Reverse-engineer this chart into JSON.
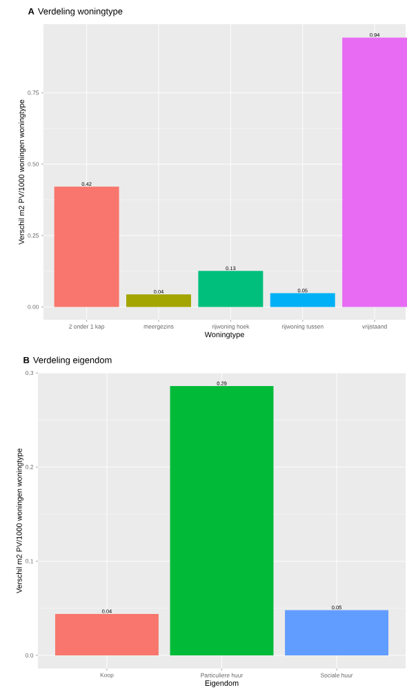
{
  "chart_data": [
    {
      "type": "bar",
      "title": "Verdeling woningtype",
      "annotations": [
        "A"
      ],
      "xlabel": "Woningtype",
      "ylabel": "Verschil m2 PV/1000 woningen woningtype",
      "categories": [
        "2 onder 1 kap",
        "meergezins",
        "rijwoning hoek",
        "rijwoning tussen",
        "vrijstaand"
      ],
      "values": [
        0.421,
        0.044,
        0.126,
        0.048,
        0.943
      ],
      "colors": [
        "#f8766d",
        "#a3a500",
        "#00bf7d",
        "#00b0f6",
        "#e76bf3"
      ],
      "value_labels": [
        "0.42",
        "0.04",
        "0.13",
        "0.05",
        "0.94"
      ],
      "ylim": [
        -0.045,
        0.99
      ],
      "yticks": [
        {
          "value": 0,
          "label": "0.00"
        },
        {
          "value": 0.25,
          "label": "0.25"
        },
        {
          "value": 0.5,
          "label": "0.50"
        },
        {
          "value": 0.75,
          "label": "0.75"
        }
      ],
      "grid": true
    },
    {
      "type": "bar",
      "title": "Verdeling eigendom",
      "annotations": [
        "B"
      ],
      "xlabel": "Eigendom",
      "ylabel": "Verschil m2 PV/1000 woningen woningtype",
      "categories": [
        "Koop",
        "Particuliere huur",
        "Sociale huur"
      ],
      "values": [
        0.044,
        0.286,
        0.048
      ],
      "colors": [
        "#f8766d",
        "#00ba38",
        "#619cff"
      ],
      "value_labels": [
        "0.04",
        "0.29",
        "0.05"
      ],
      "ylim": [
        -0.014,
        0.3
      ],
      "yticks": [
        {
          "value": 0,
          "label": "0.0"
        },
        {
          "value": 0.1,
          "label": "0.1"
        },
        {
          "value": 0.2,
          "label": "0.2"
        },
        {
          "value": 0.3,
          "label": "0.3"
        }
      ],
      "grid": true
    }
  ]
}
